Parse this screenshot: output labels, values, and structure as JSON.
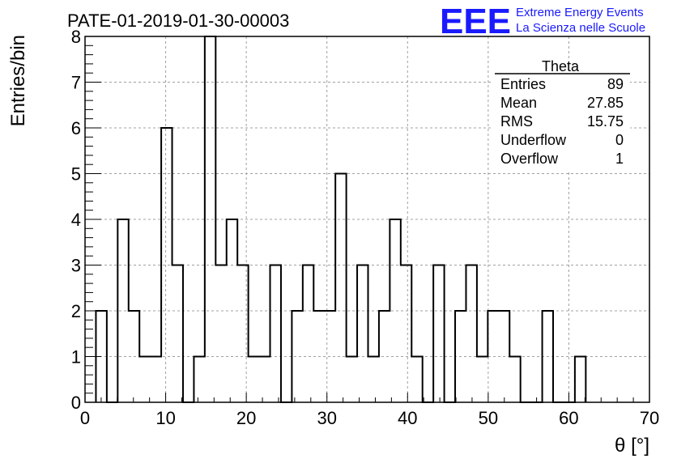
{
  "chart_data": {
    "type": "histogram",
    "title": "PATE-01-2019-01-30-00003",
    "xlabel": "θ [°]",
    "ylabel": "Entries/bin",
    "xlim": [
      0,
      70
    ],
    "ylim": [
      0,
      8
    ],
    "xticks": [
      "0",
      "10",
      "20",
      "30",
      "40",
      "50",
      "60",
      "70"
    ],
    "yticks": [
      "0",
      "1",
      "2",
      "3",
      "4",
      "5",
      "6",
      "7",
      "8"
    ],
    "grid": true,
    "bin_width": 1.35,
    "bin_edges_start": 1.35,
    "counts": [
      2,
      0,
      4,
      2,
      1,
      1,
      6,
      3,
      0,
      1,
      8,
      3,
      4,
      3,
      1,
      1,
      3,
      0,
      2,
      3,
      2,
      2,
      5,
      1,
      3,
      1,
      2,
      4,
      3,
      1,
      0,
      3,
      0,
      2,
      3,
      1,
      2,
      2,
      1,
      0,
      0,
      2,
      0,
      0,
      1
    ],
    "stats": {
      "title": "Theta",
      "rows": [
        {
          "label": "Entries",
          "value": "89"
        },
        {
          "label": "Mean",
          "value": "27.85"
        },
        {
          "label": "RMS",
          "value": "15.75"
        },
        {
          "label": "Underflow",
          "value": "0"
        },
        {
          "label": "Overflow",
          "value": "1"
        }
      ]
    }
  },
  "logo": {
    "mark": "EEE",
    "line1": "Extreme Energy Events",
    "line2": "La Scienza nelle Scuole",
    "color": "#1a1aff"
  },
  "colors": {
    "line": "#000000",
    "grid": "#a0a0a0",
    "background": "#ffffff"
  }
}
